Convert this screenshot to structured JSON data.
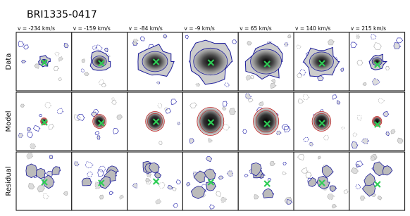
{
  "title": "BRI1335-0417",
  "columns": [
    "v = -234 km/s",
    "v = -159 km/s",
    "v = -84 km/s",
    "v = -9 km/s",
    "v = 65 km/s",
    "v = 140 km/s",
    "v = 215 km/s"
  ],
  "rows": [
    "Data",
    "Model",
    "Residual"
  ]
}
